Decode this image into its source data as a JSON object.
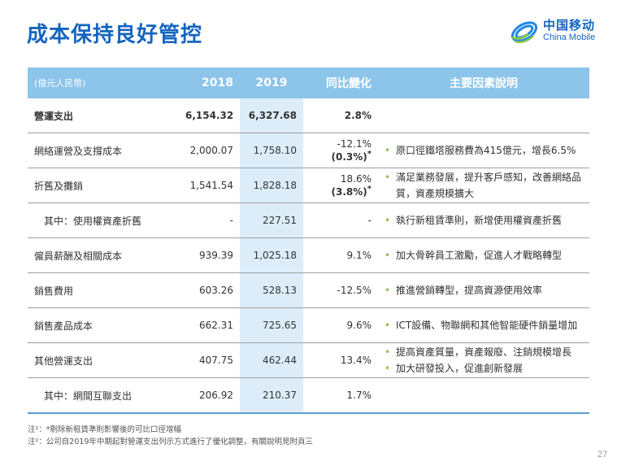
{
  "title": "成本保持良好管控",
  "logo": {
    "cn": "中国移动",
    "en": "China Mobile"
  },
  "table": {
    "header": {
      "unit": "(億元人民幣)",
      "y2018": "2018",
      "y2019": "2019",
      "change": "同比變化",
      "factors": "主要因素說明"
    },
    "rows": [
      {
        "item": "營運支出",
        "v2018": "6,154.32",
        "v2019": "6,327.68",
        "change": "2.8%",
        "change_sub": "",
        "sup": "",
        "factors": []
      },
      {
        "item": "網絡運營及支撐成本",
        "v2018": "2,000.07",
        "v2019": "1,758.10",
        "change": "-12.1%",
        "change_sub": "(0.3%)",
        "sup": "*",
        "factors": [
          "原口徑鐵塔服務費為415億元，增長6.5%"
        ]
      },
      {
        "item": "折舊及攤銷",
        "v2018": "1,541.54",
        "v2019": "1,828.18",
        "change": "18.6%",
        "change_sub": "(3.8%)",
        "sup": "*",
        "factors": [
          "滿足業務發展，提升客戶感知，改善網絡品質，資產規模擴大"
        ]
      },
      {
        "item": "其中：使用權資產折舊",
        "v2018": "-",
        "v2019": "227.51",
        "change": "-",
        "change_sub": "",
        "sup": "",
        "factors": [
          "執行新租賃準則，新增使用權資產折舊"
        ]
      },
      {
        "item": "僱員薪酬及相關成本",
        "v2018": "939.39",
        "v2019": "1,025.18",
        "change": "9.1%",
        "change_sub": "",
        "sup": "",
        "factors": [
          "加大骨幹員工激勵，促進人才戰略轉型"
        ]
      },
      {
        "item": "銷售費用",
        "v2018": "603.26",
        "v2019": "528.13",
        "change": "-12.5%",
        "change_sub": "",
        "sup": "",
        "factors": [
          "推進營銷轉型，提高資源使用效率"
        ]
      },
      {
        "item": "銷售產品成本",
        "v2018": "662.31",
        "v2019": "725.65",
        "change": "9.6%",
        "change_sub": "",
        "sup": "",
        "factors": [
          "ICT設備、物聯網和其他智能硬件銷量增加"
        ]
      },
      {
        "item": "其他營運支出",
        "v2018": "407.75",
        "v2019": "462.44",
        "change": "13.4%",
        "change_sub": "",
        "sup": "",
        "factors": [
          "提高資產質量，資產報廢、注銷規模增長",
          "加大研發投入，促進創新發展"
        ]
      },
      {
        "item": "其中：網間互聯支出",
        "v2018": "206.92",
        "v2019": "210.37",
        "change": "1.7%",
        "change_sub": "",
        "sup": "",
        "factors": []
      }
    ]
  },
  "notes": [
    "注¹：*剔除新租賃準則影響後的可比口徑增幅",
    "注²：公司自2019年中期起對營運支出列示方式進行了優化調整，有關說明見附頁三"
  ],
  "page_number": "27",
  "colors": {
    "title": "#1565c0",
    "header_bg": "#8cc4ea",
    "highlight_col": "#dcedf9",
    "bullet": "#8bc34a"
  }
}
